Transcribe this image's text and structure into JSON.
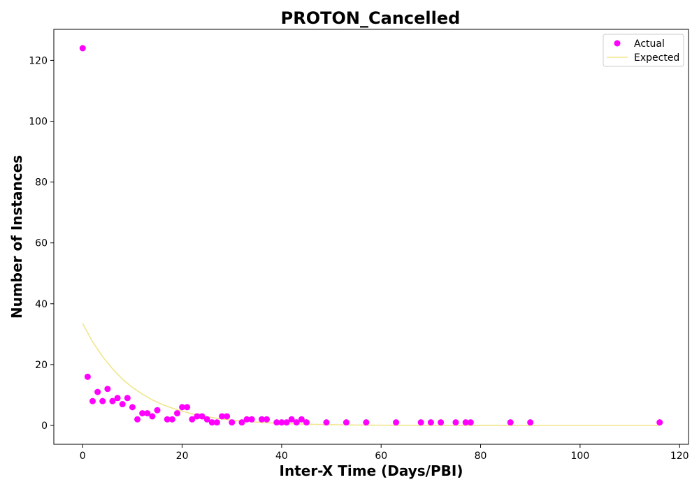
{
  "chart_data": {
    "type": "scatter",
    "title": "PROTON_Cancelled",
    "xlabel": "Inter-X Time (Days/PBI)",
    "ylabel": "Number of Instances",
    "xlim": [
      -5.8,
      121.8
    ],
    "ylim": [
      -6.2,
      130.2
    ],
    "xticks": [
      0,
      20,
      40,
      60,
      80,
      100,
      120
    ],
    "yticks": [
      0,
      20,
      40,
      60,
      80,
      100,
      120
    ],
    "grid": false,
    "legend": "top-right",
    "series": [
      {
        "name": "Actual",
        "kind": "scatter",
        "color": "#ff00ff",
        "x": [
          0,
          1,
          2,
          3,
          4,
          5,
          6,
          7,
          8,
          9,
          10,
          11,
          12,
          13,
          14,
          15,
          17,
          18,
          19,
          20,
          21,
          22,
          23,
          24,
          25,
          26,
          27,
          28,
          29,
          30,
          32,
          33,
          34,
          36,
          37,
          39,
          40,
          41,
          42,
          43,
          44,
          45,
          49,
          53,
          57,
          63,
          68,
          70,
          72,
          75,
          77,
          78,
          86,
          90,
          116
        ],
        "y": [
          124,
          16,
          8,
          11,
          8,
          12,
          8,
          9,
          7,
          9,
          6,
          2,
          4,
          4,
          3,
          5,
          2,
          2,
          4,
          6,
          6,
          2,
          3,
          3,
          2,
          1,
          1,
          3,
          3,
          1,
          1,
          2,
          2,
          2,
          2,
          1,
          1,
          1,
          2,
          1,
          2,
          1,
          1,
          1,
          1,
          1,
          1,
          1,
          1,
          1,
          1,
          1,
          1,
          1,
          1
        ]
      },
      {
        "name": "Expected",
        "kind": "line",
        "color": "#f0e68c",
        "x": [
          0,
          2,
          4,
          6,
          8,
          10,
          12,
          14,
          16,
          18,
          20,
          22,
          24,
          26,
          28,
          30,
          34,
          38,
          42,
          46,
          50,
          55,
          60,
          70,
          80,
          90,
          100,
          116
        ],
        "y": [
          33.5,
          27.5,
          22.6,
          18.6,
          15.2,
          12.5,
          10.3,
          8.4,
          6.9,
          5.7,
          4.7,
          3.8,
          3.2,
          2.6,
          2.1,
          1.75,
          1.18,
          0.79,
          0.53,
          0.36,
          0.24,
          0.14,
          0.08,
          0.03,
          0.01,
          0,
          0,
          0
        ]
      }
    ]
  }
}
